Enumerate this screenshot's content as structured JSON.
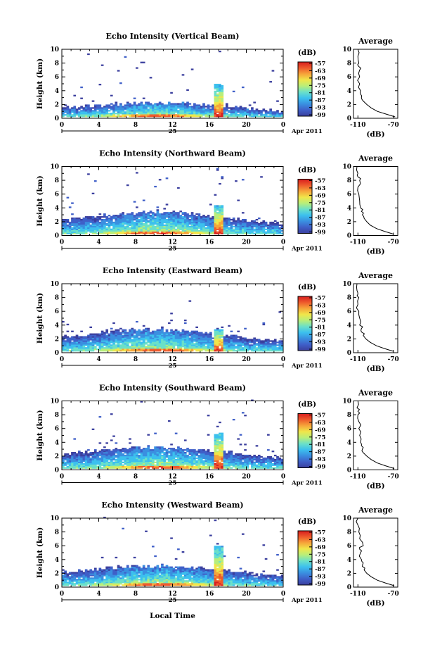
{
  "figure": {
    "xlabel": "Local Time",
    "date_label": "Apr 2011",
    "day_label": "25",
    "colors": {
      "background": "#ffffff",
      "axis": "#000000",
      "colormap": [
        "#3b3f9e",
        "#3f5fc8",
        "#3a8fe0",
        "#3cc0ee",
        "#6be0c8",
        "#b8ee7a",
        "#f0e64a",
        "#f6a53a",
        "#ee5a2c",
        "#d81e1e"
      ]
    }
  },
  "chart_data": [
    {
      "type": "heatmap",
      "title": "Echo Intensity (Vertical Beam)",
      "ylabel": "Height (km)",
      "xlim": [
        0,
        24
      ],
      "ylim": [
        0,
        10
      ],
      "xticks": [
        "0",
        "4",
        "8",
        "12",
        "16",
        "20",
        "0"
      ],
      "yticks": [
        "0",
        "2",
        "4",
        "6",
        "8",
        "10"
      ],
      "colorbar": {
        "label": "(dB)",
        "ticks": [
          "-57",
          "-63",
          "-69",
          "-75",
          "-81",
          "-87",
          "-93",
          "-99"
        ]
      },
      "layer_top_km": 2.0,
      "spike_time_h": 17.0,
      "spike_top_km": 5.0,
      "profile": {
        "title": "Average",
        "xlabel": "(dB)",
        "xticks": [
          "-110",
          "-70"
        ],
        "xlim": [
          -115,
          -65
        ],
        "ylim": [
          0,
          10
        ],
        "yticks": [
          "0",
          "2",
          "4",
          "6",
          "8",
          "10"
        ],
        "x": [
          -68,
          -78,
          -88,
          -95,
          -100,
          -104,
          -106,
          -107,
          -107,
          -108,
          -108,
          -108,
          -109,
          -109,
          -110,
          -110
        ],
        "y": [
          0.2,
          0.6,
          1.0,
          1.5,
          2.0,
          2.5,
          3.0,
          3.5,
          4.0,
          5.0,
          6.0,
          7.0,
          7.5,
          8.0,
          9.0,
          10.0
        ]
      }
    },
    {
      "type": "heatmap",
      "title": "Echo Intensity (Northward Beam)",
      "ylabel": "Height (km)",
      "xlim": [
        0,
        24
      ],
      "ylim": [
        0,
        10
      ],
      "xticks": [
        "0",
        "4",
        "8",
        "12",
        "16",
        "20",
        "0"
      ],
      "yticks": [
        "0",
        "2",
        "4",
        "6",
        "8",
        "10"
      ],
      "colorbar": {
        "label": "(dB)",
        "ticks": [
          "-57",
          "-63",
          "-69",
          "-75",
          "-81",
          "-87",
          "-93",
          "-99"
        ]
      },
      "layer_top_km": 3.0,
      "spike_time_h": 17.0,
      "spike_top_km": 4.5,
      "profile": {
        "title": "Average",
        "xlabel": "(dB)",
        "xticks": [
          "-110",
          "-70"
        ],
        "xlim": [
          -115,
          -65
        ],
        "ylim": [
          0,
          10
        ],
        "yticks": [
          "0",
          "2",
          "4",
          "6",
          "8",
          "10"
        ],
        "x": [
          -70,
          -80,
          -89,
          -96,
          -100,
          -103,
          -105,
          -106,
          -107,
          -108,
          -109,
          -110,
          -108,
          -110,
          -110,
          -111
        ],
        "y": [
          0.2,
          0.6,
          1.0,
          1.5,
          2.0,
          2.5,
          3.0,
          3.5,
          4.0,
          5.0,
          6.0,
          7.0,
          8.0,
          8.5,
          9.0,
          10.0
        ]
      }
    },
    {
      "type": "heatmap",
      "title": "Echo Intensity (Eastward Beam)",
      "ylabel": "Height (km)",
      "xlim": [
        0,
        24
      ],
      "ylim": [
        0,
        10
      ],
      "xticks": [
        "0",
        "4",
        "8",
        "12",
        "16",
        "20",
        "0"
      ],
      "yticks": [
        "0",
        "2",
        "4",
        "6",
        "8",
        "10"
      ],
      "colorbar": {
        "label": "(dB)",
        "ticks": [
          "-57",
          "-63",
          "-69",
          "-75",
          "-81",
          "-87",
          "-93",
          "-99"
        ]
      },
      "layer_top_km": 3.0,
      "spike_time_h": 17.0,
      "spike_top_km": 3.5,
      "profile": {
        "title": "Average",
        "xlabel": "(dB)",
        "xticks": [
          "-110",
          "-70"
        ],
        "xlim": [
          -115,
          -65
        ],
        "ylim": [
          0,
          10
        ],
        "yticks": [
          "0",
          "2",
          "4",
          "6",
          "8",
          "10"
        ],
        "x": [
          -70,
          -80,
          -89,
          -96,
          -101,
          -104,
          -106,
          -106,
          -108,
          -108,
          -109,
          -110,
          -109,
          -110,
          -111,
          -111
        ],
        "y": [
          0.2,
          0.6,
          1.0,
          1.5,
          2.0,
          2.5,
          3.0,
          3.5,
          4.0,
          5.0,
          6.0,
          7.0,
          8.0,
          8.5,
          9.0,
          10.0
        ]
      }
    },
    {
      "type": "heatmap",
      "title": "Echo Intensity (Southward Beam)",
      "ylabel": "Height (km)",
      "xlim": [
        0,
        24
      ],
      "ylim": [
        0,
        10
      ],
      "xticks": [
        "0",
        "4",
        "8",
        "12",
        "16",
        "20",
        "0"
      ],
      "yticks": [
        "0",
        "2",
        "4",
        "6",
        "8",
        "10"
      ],
      "colorbar": {
        "label": "(dB)",
        "ticks": [
          "-57",
          "-63",
          "-69",
          "-75",
          "-81",
          "-87",
          "-93",
          "-99"
        ]
      },
      "layer_top_km": 3.0,
      "spike_time_h": 17.0,
      "spike_top_km": 5.5,
      "profile": {
        "title": "Average",
        "xlabel": "(dB)",
        "xticks": [
          "-110",
          "-70"
        ],
        "xlim": [
          -115,
          -65
        ],
        "ylim": [
          0,
          10
        ],
        "yticks": [
          "0",
          "2",
          "4",
          "6",
          "8",
          "10"
        ],
        "x": [
          -69,
          -79,
          -88,
          -95,
          -100,
          -104,
          -105,
          -106,
          -107,
          -108,
          -109,
          -109,
          -110,
          -110,
          -111,
          -110
        ],
        "y": [
          0.2,
          0.6,
          1.0,
          1.5,
          2.0,
          2.5,
          3.0,
          3.5,
          4.0,
          5.0,
          6.0,
          7.0,
          8.0,
          8.5,
          9.0,
          10.0
        ]
      }
    },
    {
      "type": "heatmap",
      "title": "Echo Intensity (Westward Beam)",
      "ylabel": "Height (km)",
      "xlim": [
        0,
        24
      ],
      "ylim": [
        0,
        10
      ],
      "xticks": [
        "0",
        "4",
        "8",
        "12",
        "16",
        "20",
        "0"
      ],
      "yticks": [
        "0",
        "2",
        "4",
        "6",
        "8",
        "10"
      ],
      "colorbar": {
        "label": "(dB)",
        "ticks": [
          "-57",
          "-63",
          "-69",
          "-75",
          "-81",
          "-87",
          "-93",
          "-99"
        ]
      },
      "layer_top_km": 2.8,
      "spike_time_h": 17.0,
      "spike_top_km": 6.0,
      "profile": {
        "title": "Average",
        "xlabel": "(dB)",
        "xticks": [
          "-110",
          "-70"
        ],
        "xlim": [
          -115,
          -65
        ],
        "ylim": [
          0,
          10
        ],
        "yticks": [
          "0",
          "2",
          "4",
          "6",
          "8",
          "10"
        ],
        "x": [
          -69,
          -79,
          -88,
          -95,
          -100,
          -103,
          -105,
          -104,
          -106,
          -107,
          -108,
          -104,
          -108,
          -109,
          -110,
          -110
        ],
        "y": [
          0.2,
          0.6,
          1.0,
          1.5,
          2.0,
          2.5,
          3.0,
          3.5,
          4.0,
          5.0,
          5.5,
          6.0,
          7.0,
          8.0,
          9.0,
          10.0
        ]
      }
    }
  ]
}
